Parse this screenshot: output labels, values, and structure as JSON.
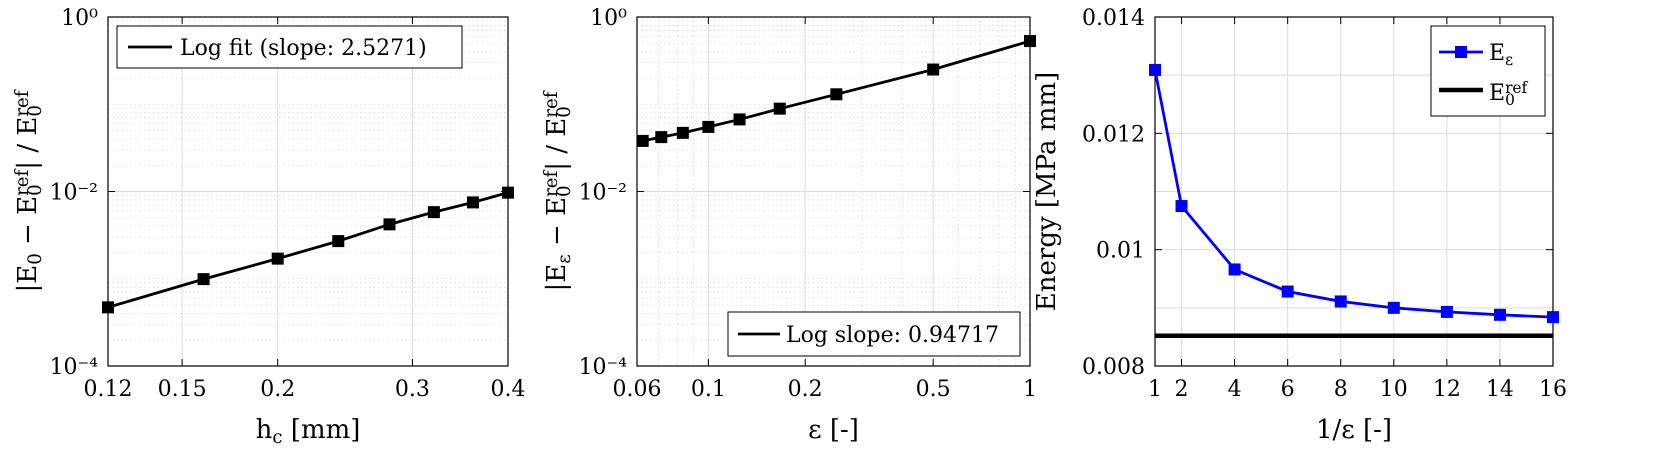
{
  "chart_data": [
    {
      "type": "line",
      "scale": {
        "x": "log",
        "y": "log"
      },
      "grid": true,
      "xlabel": "h_c [mm]",
      "ylabel": "|E_0 − E_0^ref| / E_0^ref",
      "xlim": [
        0.12,
        0.4
      ],
      "ylim": [
        0.0001,
        1
      ],
      "xticks": [
        0.12,
        0.15,
        0.2,
        0.3,
        0.4
      ],
      "xtick_labels": [
        "0.12",
        "0.15",
        "0.2",
        "0.3",
        "0.4"
      ],
      "yticks": [
        0.0001,
        0.01,
        1
      ],
      "ytick_labels": [
        "10⁻⁴",
        "10⁻²",
        "10⁰"
      ],
      "legend": {
        "position": "top-left",
        "entries": [
          "Log fit (slope: 2.5271)"
        ]
      },
      "series": [
        {
          "name": "Log fit (slope: 2.5271)",
          "color": "#000000",
          "marker": "square",
          "x": [
            0.12,
            0.16,
            0.2,
            0.24,
            0.28,
            0.32,
            0.36,
            0.4
          ],
          "y": [
            0.00047,
            0.00099,
            0.0017,
            0.0027,
            0.0042,
            0.0058,
            0.0075,
            0.0097
          ]
        }
      ]
    },
    {
      "type": "line",
      "scale": {
        "x": "log",
        "y": "log"
      },
      "grid": true,
      "xlabel": "ε [-]",
      "ylabel": "|E_ε − E_0^ref| / E_0^ref",
      "xlim": [
        0.06,
        1
      ],
      "ylim": [
        0.0001,
        1
      ],
      "xticks": [
        0.06,
        0.1,
        0.2,
        0.5,
        1
      ],
      "xtick_labels": [
        "0.06",
        "0.1",
        "0.2",
        "0.5",
        "1"
      ],
      "yticks": [
        0.0001,
        0.01,
        1
      ],
      "ytick_labels": [
        "10⁻⁴",
        "10⁻²",
        "10⁰"
      ],
      "legend": {
        "position": "bottom-right",
        "entries": [
          "Log slope: 0.94717"
        ]
      },
      "series": [
        {
          "name": "Log slope: 0.94717",
          "color": "#000000",
          "marker": "square",
          "x": [
            0.0625,
            0.0714,
            0.0833,
            0.1,
            0.125,
            0.1667,
            0.25,
            0.5,
            1
          ],
          "y": [
            0.038,
            0.042,
            0.047,
            0.055,
            0.067,
            0.089,
            0.13,
            0.25,
            0.53
          ]
        }
      ]
    },
    {
      "type": "line",
      "scale": {
        "x": "linear",
        "y": "linear"
      },
      "grid": true,
      "xlabel": "1/ε [-]",
      "ylabel": "Energy [MPa mm]",
      "xlim": [
        1,
        16
      ],
      "ylim": [
        0.008,
        0.014
      ],
      "xticks": [
        1,
        2,
        4,
        6,
        8,
        10,
        12,
        14,
        16
      ],
      "xtick_labels": [
        "1",
        "2",
        "4",
        "6",
        "8",
        "10",
        "12",
        "14",
        "16"
      ],
      "yticks": [
        0.008,
        0.01,
        0.012,
        0.014
      ],
      "ytick_labels": [
        "0.008",
        "0.01",
        "0.012",
        "0.014"
      ],
      "legend": {
        "position": "top-right",
        "entries": [
          "E_ε",
          "E_0^ref"
        ]
      },
      "series": [
        {
          "name": "E_ε",
          "color": "#0000ff",
          "marker": "square",
          "x": [
            1,
            2,
            4,
            6,
            8,
            10,
            12,
            14,
            16
          ],
          "y": [
            0.01309,
            0.01075,
            0.00966,
            0.00928,
            0.00911,
            0.009,
            0.00893,
            0.00888,
            0.00884
          ]
        },
        {
          "name": "E_0^ref",
          "color": "#000000",
          "marker": "none",
          "x": [
            1,
            16
          ],
          "y": [
            0.00852,
            0.00852
          ]
        }
      ]
    }
  ]
}
